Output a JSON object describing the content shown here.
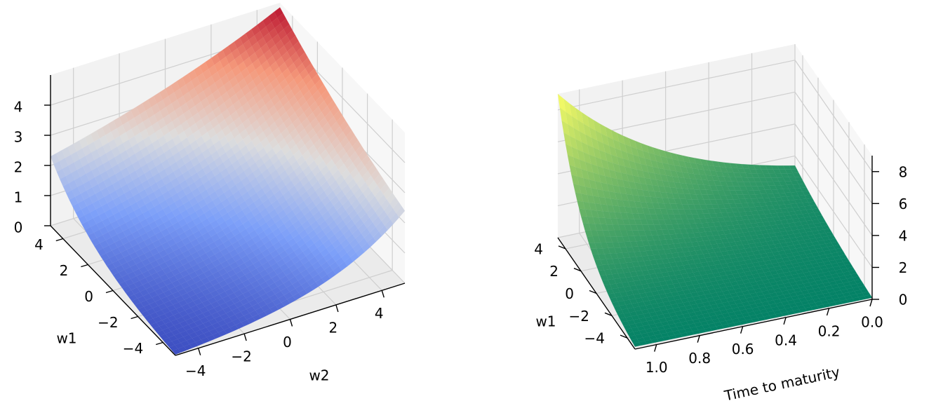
{
  "chart_data": [
    {
      "type": "surface3d",
      "colormap": "coolwarm",
      "grid": true,
      "x": {
        "label": "w1",
        "range": [
          -5,
          5
        ],
        "ticks": [
          -4,
          -2,
          0,
          2,
          4
        ],
        "tick_labels": [
          "−4",
          "−2",
          "0",
          "2",
          "4"
        ]
      },
      "y": {
        "label": "w2",
        "range": [
          -5,
          5
        ],
        "ticks": [
          -4,
          -2,
          0,
          2,
          4
        ],
        "tick_labels": [
          "−4",
          "−2",
          "0",
          "2",
          "4"
        ]
      },
      "z": {
        "label": "",
        "range": [
          0,
          5
        ],
        "ticks": [
          0,
          1,
          2,
          3,
          4
        ],
        "tick_labels": [
          "0",
          "1",
          "2",
          "3",
          "4"
        ]
      },
      "corner_values": {
        "w1_min_w2_min": 0.03,
        "w1_max_w2_min": 2.3,
        "w1_min_w2_max": 2.4,
        "w1_max_w2_max": 4.85
      }
    },
    {
      "type": "surface3d",
      "colormap": "summer",
      "grid": true,
      "x": {
        "label": "w1",
        "range": [
          -5,
          5
        ],
        "ticks": [
          -4,
          -2,
          0,
          2,
          4
        ],
        "tick_labels": [
          "−4",
          "−2",
          "0",
          "2",
          "4"
        ]
      },
      "y": {
        "label": "Time to maturity",
        "range": [
          0,
          1.1
        ],
        "ticks": [
          0.0,
          0.2,
          0.4,
          0.6,
          0.8,
          1.0
        ],
        "tick_labels": [
          "0.0",
          "0.2",
          "0.4",
          "0.6",
          "0.8",
          "1.0"
        ]
      },
      "z": {
        "label": "",
        "range": [
          0,
          9
        ],
        "ticks": [
          0,
          2,
          4,
          6,
          8
        ],
        "tick_labels": [
          "0",
          "2",
          "4",
          "6",
          "8"
        ]
      },
      "corner_values": {
        "w1_min_t_min": 0.1,
        "w1_max_t_min": 1.4,
        "w1_min_t_max": 0.15,
        "w1_max_t_max": 9.0
      }
    }
  ]
}
